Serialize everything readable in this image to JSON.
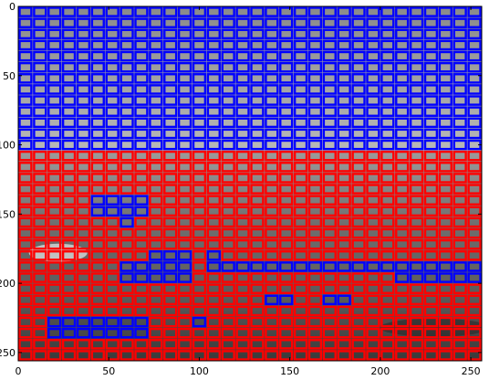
{
  "chart_data": {
    "type": "heatmap",
    "title": "",
    "xlabel": "",
    "ylabel": "",
    "xlim": [
      0,
      256
    ],
    "ylim": [
      256,
      0
    ],
    "grid": false,
    "cell_size": 8,
    "x_ticks": [
      0,
      50,
      100,
      150,
      200,
      250
    ],
    "x_tick_labels": [
      "0",
      "50",
      "100",
      "150",
      "200",
      "250"
    ],
    "y_ticks": [
      0,
      50,
      100,
      150,
      200,
      250
    ],
    "y_tick_labels": [
      "0",
      "50",
      "100",
      "150",
      "200",
      "250"
    ],
    "sky_end_y": 104,
    "classes": [
      {
        "id": "sky",
        "color": "#0000ff"
      },
      {
        "id": "ground",
        "color": "#ff0000"
      }
    ],
    "ground_blue_patches": [
      {
        "x": [
          40,
          72
        ],
        "y": [
          136,
          152
        ]
      },
      {
        "x": [
          56,
          64
        ],
        "y": [
          152,
          160
        ]
      },
      {
        "x": [
          56,
          88
        ],
        "y": [
          184,
          200
        ]
      },
      {
        "x": [
          72,
          96
        ],
        "y": [
          176,
          200
        ]
      },
      {
        "x": [
          104,
          208
        ],
        "y": [
          184,
          192
        ]
      },
      {
        "x": [
          104,
          112
        ],
        "y": [
          176,
          184
        ]
      },
      {
        "x": [
          208,
          256
        ],
        "y": [
          184,
          200
        ]
      },
      {
        "x": [
          136,
          152
        ],
        "y": [
          208,
          216
        ]
      },
      {
        "x": [
          168,
          184
        ],
        "y": [
          208,
          216
        ]
      },
      {
        "x": [
          16,
          72
        ],
        "y": [
          224,
          240
        ]
      },
      {
        "x": [
          96,
          104
        ],
        "y": [
          224,
          232
        ]
      }
    ]
  }
}
